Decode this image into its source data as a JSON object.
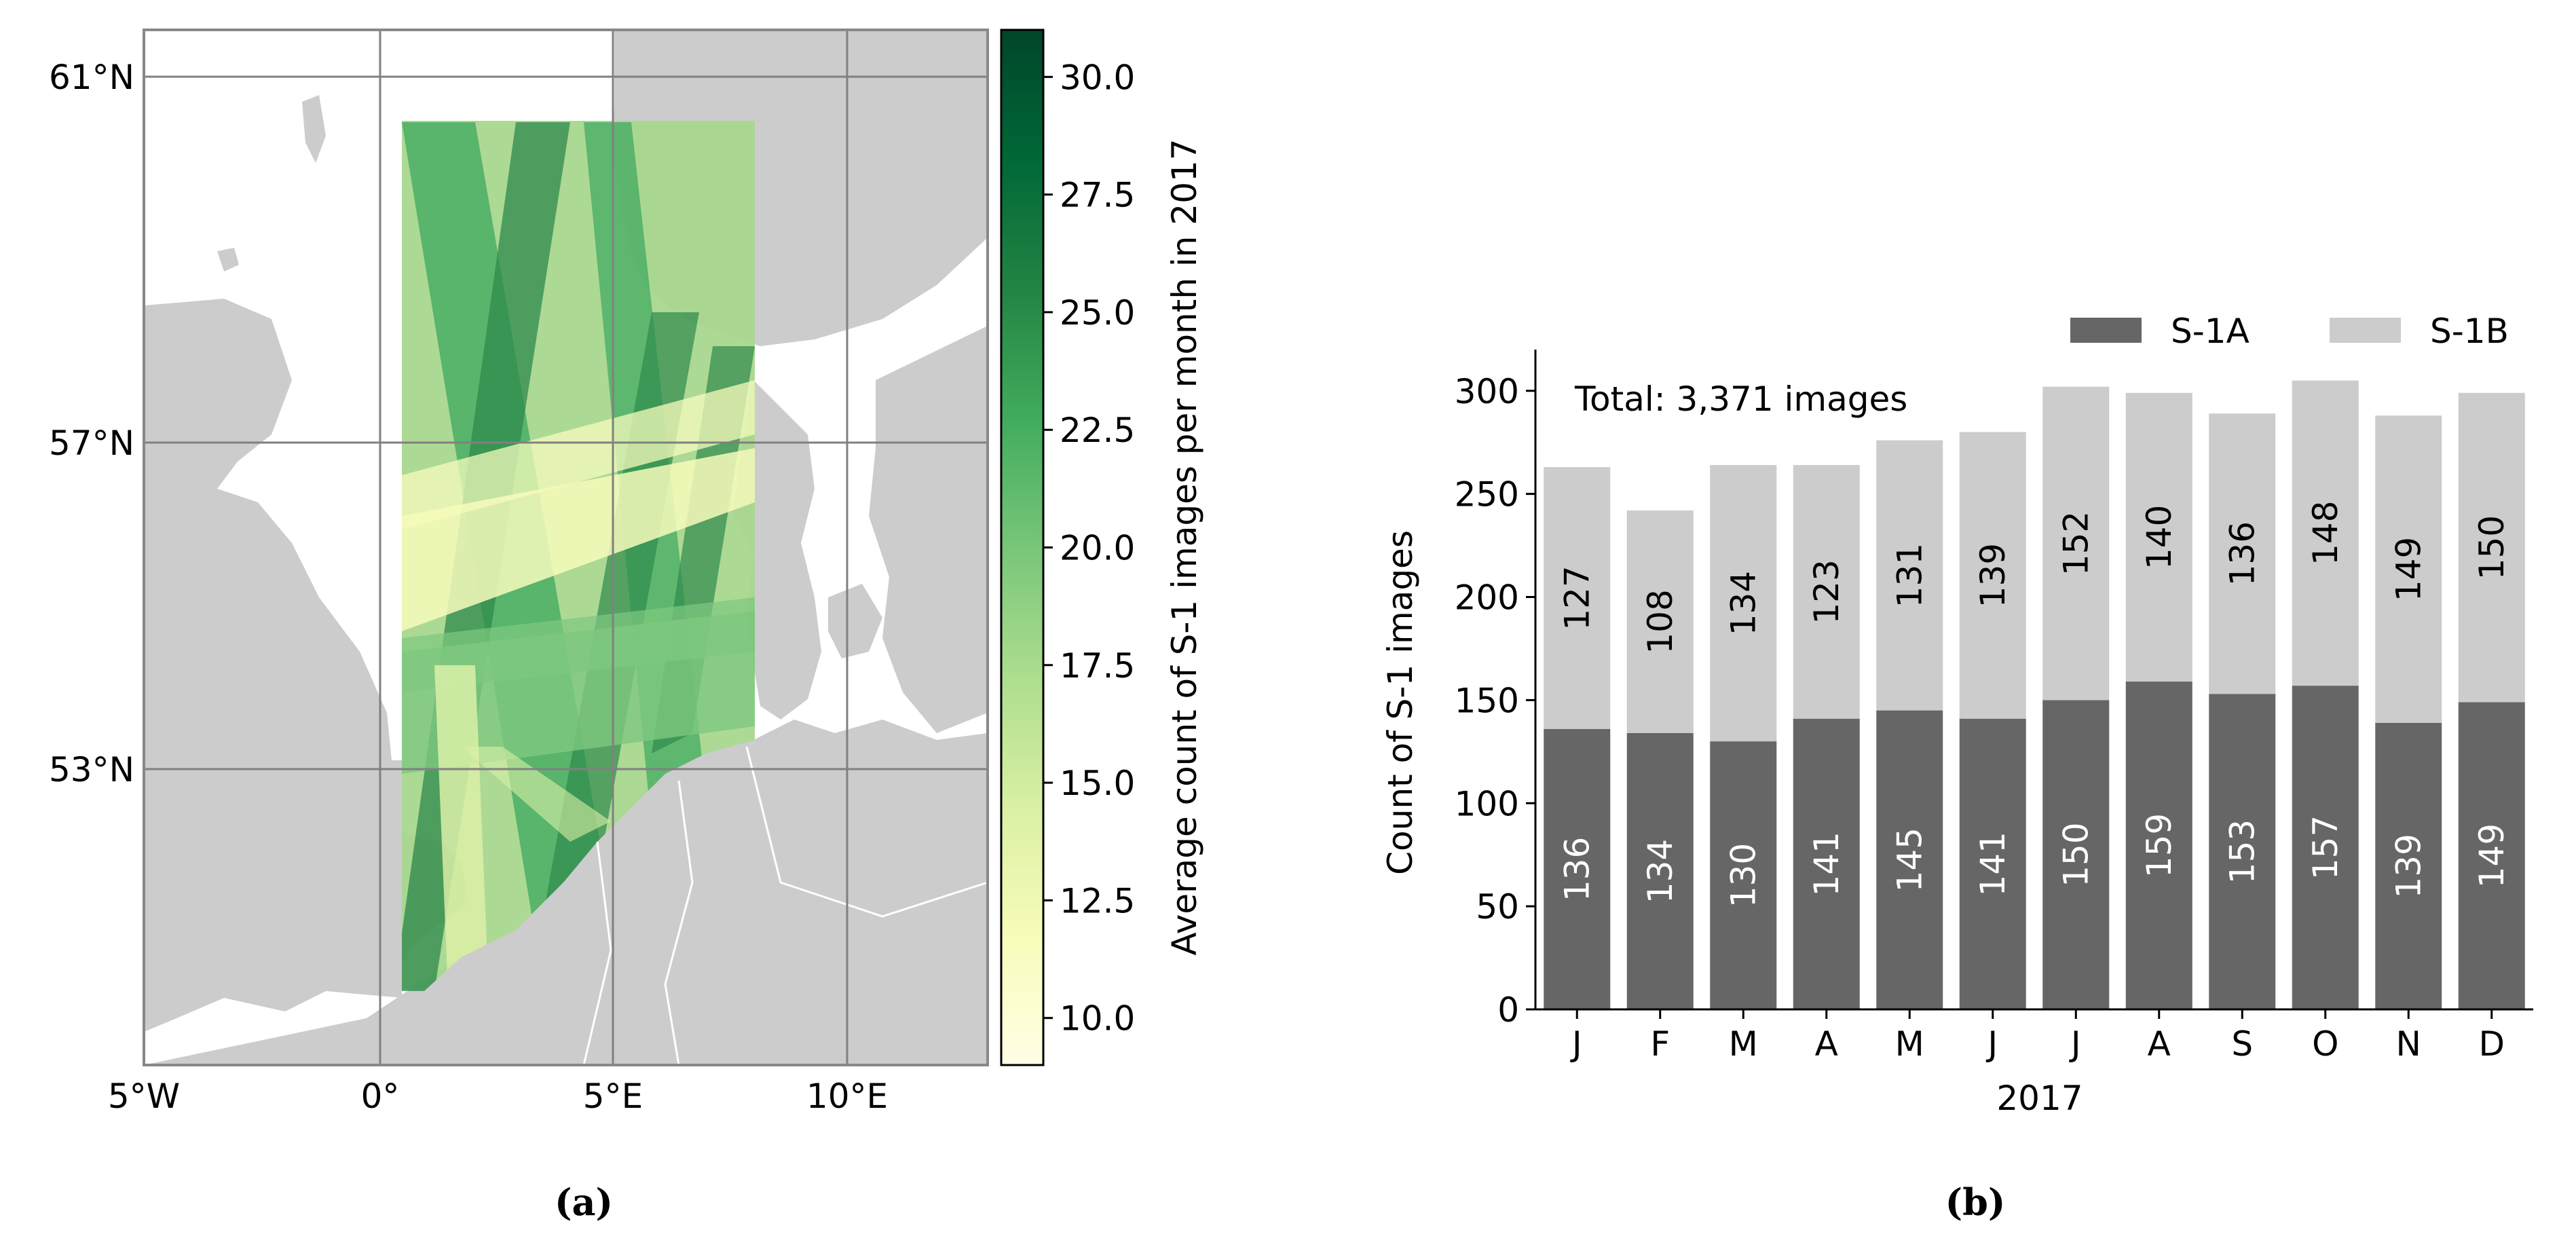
{
  "panel_a": {
    "caption": "(a)",
    "lat_labels": [
      "61°N",
      "57°N",
      "53°N"
    ],
    "lon_labels": [
      "5°W",
      "0°",
      "5°E",
      "10°E"
    ],
    "colorbar": {
      "label": "Average count of S-1 images per month in 2017",
      "ticks": [
        "10.0",
        "12.5",
        "15.0",
        "17.5",
        "20.0",
        "22.5",
        "25.0",
        "27.5",
        "30.0"
      ],
      "min": 9.0,
      "max": 31.0,
      "colormap": "Greens",
      "colors": [
        "#ffffe5",
        "#f7fcb9",
        "#d9f0a3",
        "#addd8e",
        "#78c679",
        "#41ab5d",
        "#238443",
        "#006837",
        "#004529"
      ]
    },
    "land_color": "#cccccc",
    "sea_color": "#ffffff"
  },
  "chart_data": {
    "type": "bar",
    "caption": "(b)",
    "stacked": true,
    "categories": [
      "J",
      "F",
      "M",
      "A",
      "M",
      "J",
      "J",
      "A",
      "S",
      "O",
      "N",
      "D"
    ],
    "series": [
      {
        "name": "S-1A",
        "color": "#666666",
        "label_color": "#ffffff",
        "values": [
          136,
          134,
          130,
          141,
          145,
          141,
          150,
          159,
          153,
          157,
          139,
          149
        ]
      },
      {
        "name": "S-1B",
        "color": "#cccccc",
        "label_color": "#000000",
        "values": [
          127,
          108,
          134,
          123,
          131,
          139,
          152,
          140,
          136,
          148,
          149,
          150
        ]
      }
    ],
    "annotation": "Total: 3,371 images",
    "xlabel": "2017",
    "ylabel": "Count of S-1 images",
    "ylim": [
      0,
      320
    ],
    "yticks": [
      0,
      50,
      100,
      150,
      200,
      250,
      300
    ],
    "legend_position": "top-right",
    "grid": false
  }
}
